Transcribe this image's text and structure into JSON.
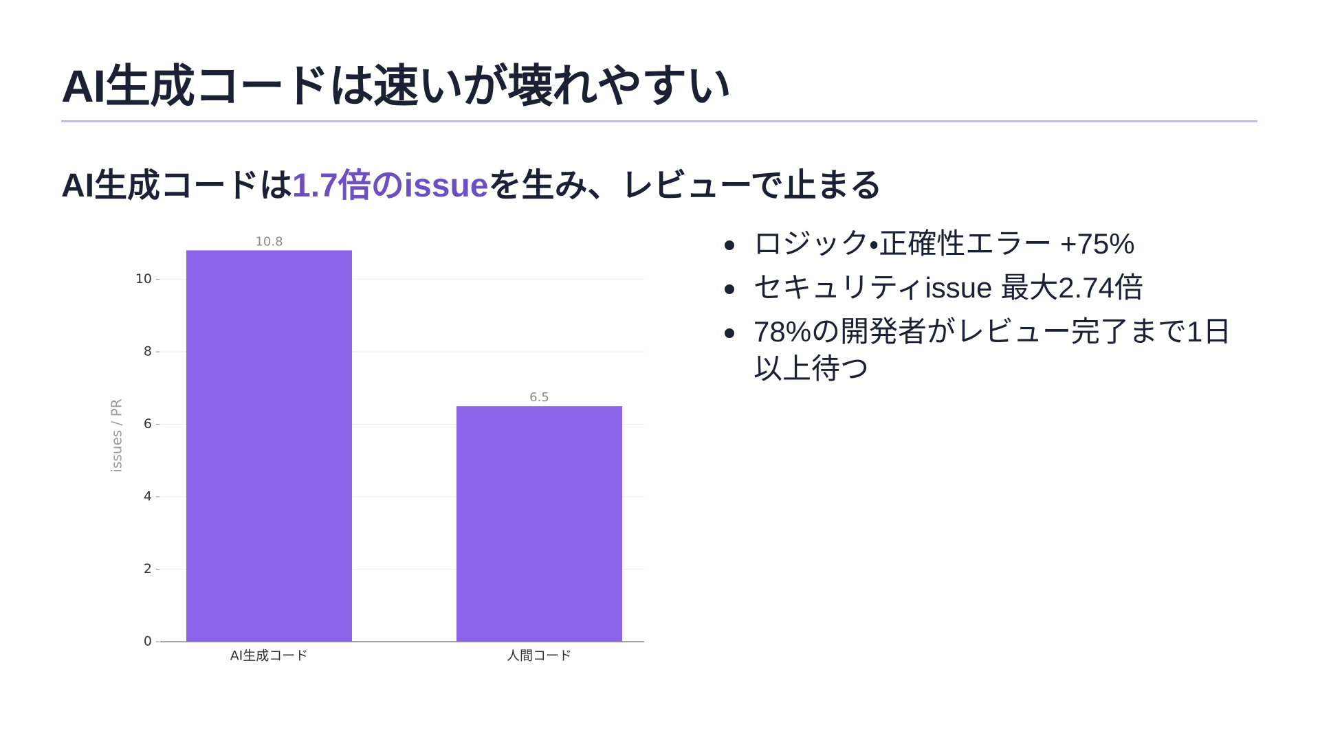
{
  "title": "AI生成コードは速いが壊れやすい",
  "subtitle": {
    "before": "AI生成コードは",
    "highlight": "1.7倍のissue",
    "after": "を生み、レビューで止まる"
  },
  "chart_data": {
    "type": "bar",
    "categories": [
      "AI生成コード",
      "人間コード"
    ],
    "values": [
      10.8,
      6.5
    ],
    "color": "#8b62e8",
    "ylabel": "issues / PR",
    "ylim": [
      0,
      11.3
    ],
    "yticks": [
      0,
      2,
      4,
      6,
      8,
      10
    ],
    "grid": true
  },
  "bullets": [
    "ロジック・正確性エラー +75%",
    "セキュリティissue 最大2.74倍",
    "78%の開発者がレビュー完了まで1日以上待つ"
  ]
}
